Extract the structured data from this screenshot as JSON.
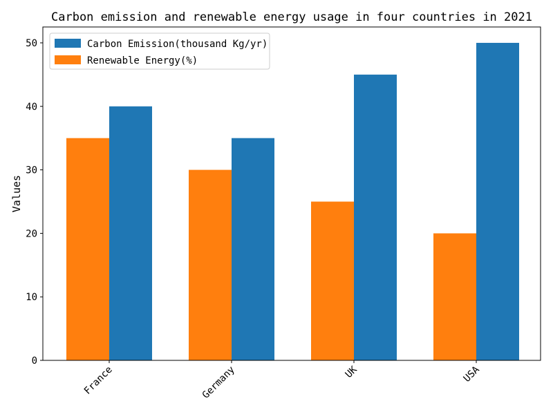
{
  "chart_data": {
    "type": "bar",
    "title": "Carbon emission and renewable energy usage in four countries in 2021",
    "xlabel": "",
    "ylabel": "Values",
    "categories": [
      "France",
      "Germany",
      "UK",
      "USA"
    ],
    "series": [
      {
        "name": "Carbon Emission(thousand Kg/yr)",
        "values": [
          40,
          35,
          45,
          50
        ],
        "color": "#1f77b4"
      },
      {
        "name": "Renewable Energy(%)",
        "values": [
          35,
          30,
          25,
          20
        ],
        "color": "#ff7f0e"
      }
    ],
    "ylim": [
      0,
      52.5
    ],
    "yticks": [
      0,
      10,
      20,
      30,
      40,
      50
    ],
    "grid": false,
    "legend_position": "top-left"
  }
}
